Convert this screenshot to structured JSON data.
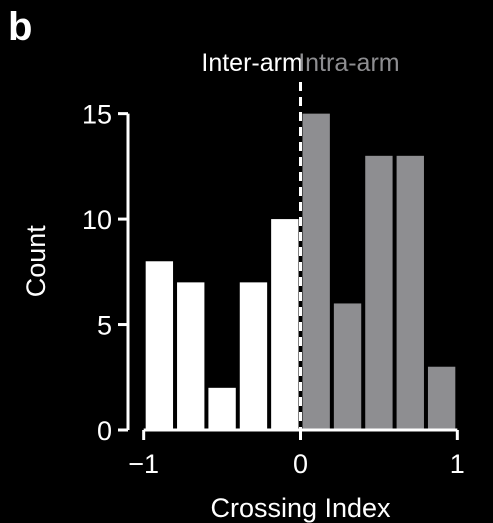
{
  "panel_label": "b",
  "chart_data": {
    "type": "bar",
    "xlabel": "Crossing Index",
    "ylabel": "Count",
    "xlim": [
      -1.1,
      1.1
    ],
    "ylim": [
      0,
      16.5
    ],
    "xticks": [
      -1,
      0,
      1
    ],
    "xtick_labels": [
      "−1",
      "0",
      "1"
    ],
    "yticks": [
      0,
      5,
      10,
      15
    ],
    "ytick_labels": [
      "0",
      "5",
      "10",
      "15"
    ],
    "bin_width": 0.2,
    "divider": {
      "x": 0,
      "style": "dashed",
      "color": "#ffffff"
    },
    "groups": [
      {
        "label": "Inter-arm",
        "color": "#ffffff",
        "position": "left"
      },
      {
        "label": "Intra-arm",
        "color": "#8e8e91",
        "position": "right"
      }
    ],
    "series": [
      {
        "group": 0,
        "bins": [
          {
            "x0": -1.0,
            "x1": -0.8,
            "count": 8
          },
          {
            "x0": -0.8,
            "x1": -0.6,
            "count": 7
          },
          {
            "x0": -0.6,
            "x1": -0.4,
            "count": 2
          },
          {
            "x0": -0.4,
            "x1": -0.2,
            "count": 7
          },
          {
            "x0": -0.2,
            "x1": 0.0,
            "count": 10
          }
        ]
      },
      {
        "group": 1,
        "bins": [
          {
            "x0": 0.0,
            "x1": 0.2,
            "count": 15
          },
          {
            "x0": 0.2,
            "x1": 0.4,
            "count": 6
          },
          {
            "x0": 0.4,
            "x1": 0.6,
            "count": 13
          },
          {
            "x0": 0.6,
            "x1": 0.8,
            "count": 13
          },
          {
            "x0": 0.8,
            "x1": 1.0,
            "count": 3
          }
        ]
      }
    ],
    "grid": false,
    "legend": "none"
  }
}
